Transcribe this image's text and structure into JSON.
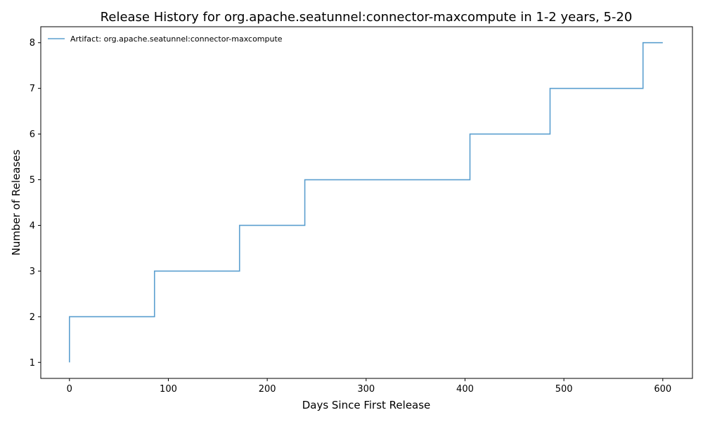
{
  "chart_data": {
    "type": "line",
    "drawstyle": "steps-post",
    "title": "Release History for org.apache.seatunnel:connector-maxcompute in 1-2 years, 5-20",
    "xlabel": "Days Since First Release",
    "ylabel": "Number of Releases",
    "xlim": [
      -29,
      630
    ],
    "ylim": [
      0.65,
      8.35
    ],
    "xticks": [
      0,
      100,
      200,
      300,
      400,
      500,
      600
    ],
    "yticks": [
      1,
      2,
      3,
      4,
      5,
      6,
      7,
      8
    ],
    "grid": false,
    "legend": {
      "location": "upper-left"
    },
    "series": [
      {
        "name": "Artifact: org.apache.seatunnel:connector-maxcompute",
        "color": "#5b9fcf",
        "x": [
          0,
          0,
          86,
          172,
          238,
          405,
          486,
          580,
          600
        ],
        "y": [
          1,
          2,
          3,
          4,
          5,
          6,
          7,
          8,
          8
        ]
      }
    ]
  }
}
